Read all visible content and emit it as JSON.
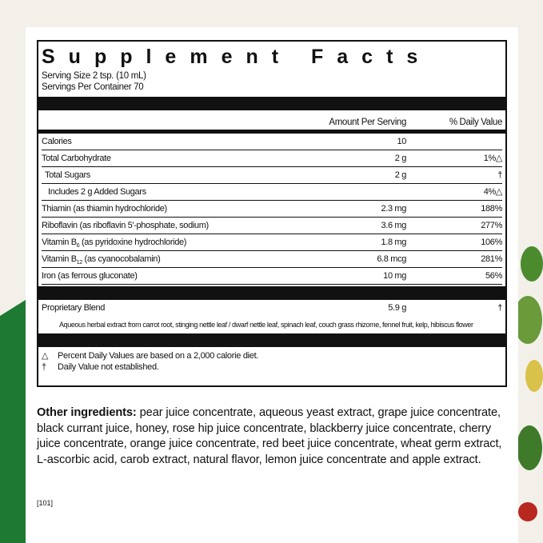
{
  "title": "Supplement Facts",
  "serving_size": "Serving Size 2 tsp. (10 mL)",
  "servings_per_container": "Servings Per Container 70",
  "headers": {
    "amount": "Amount Per Serving",
    "dv": "% Daily Value"
  },
  "rows": [
    {
      "name": "Calories",
      "amount": "10",
      "dv": ""
    },
    {
      "name": "Total Carbohydrate",
      "amount": "2 g",
      "dv": "1%△"
    },
    {
      "name": "Total Sugars",
      "amount": "2 g",
      "dv": "†"
    },
    {
      "name": "Includes 2 g Added Sugars",
      "amount": "",
      "dv": "4%△"
    },
    {
      "name": "Thiamin (as thiamin hydrochloride)",
      "amount": "2.3 mg",
      "dv": "188%"
    },
    {
      "name": "Riboflavin (as riboflavin 5'-phosphate, sodium)",
      "amount": "3.6 mg",
      "dv": "277%"
    },
    {
      "name_pre": "Vitamin B",
      "name_sub": "6",
      "name_post": " (as pyridoxine hydrochloride)",
      "amount": "1.8 mg",
      "dv": "106%"
    },
    {
      "name_pre": "Vitamin B",
      "name_sub": "12",
      "name_post": " (as cyanocobalamin)",
      "amount": "6.8 mcg",
      "dv": "281%"
    },
    {
      "name": "Iron (as ferrous gluconate)",
      "amount": "10 mg",
      "dv": "56%"
    }
  ],
  "blend": {
    "name": "Proprietary Blend",
    "amount": "5.9 g",
    "dv": "†",
    "note": "Aqueous herbal extract from carrot root, stinging nettle leaf / dwarf nettle leaf, spinach leaf, couch grass rhizome, fennel fruit, kelp, hibiscus flower"
  },
  "footnotes": [
    {
      "sym": "△",
      "text": "Percent Daily Values are based on a 2,000 calorie diet."
    },
    {
      "sym": "†",
      "text": "Daily Value not established."
    }
  ],
  "other": {
    "label": "Other ingredients:",
    "text": " pear juice concentrate, aqueous yeast extract, grape juice concentrate, black currant juice, honey, rose hip juice concentrate, blackberry juice concentrate, cherry juice concentrate, orange juice concentrate, red beet juice concentrate, wheat germ extract, L-ascorbic acid, carob extract, natural flavor, lemon juice concentrate and apple extract."
  },
  "code": "[101]",
  "colors": {
    "green": "#1e7a32"
  }
}
